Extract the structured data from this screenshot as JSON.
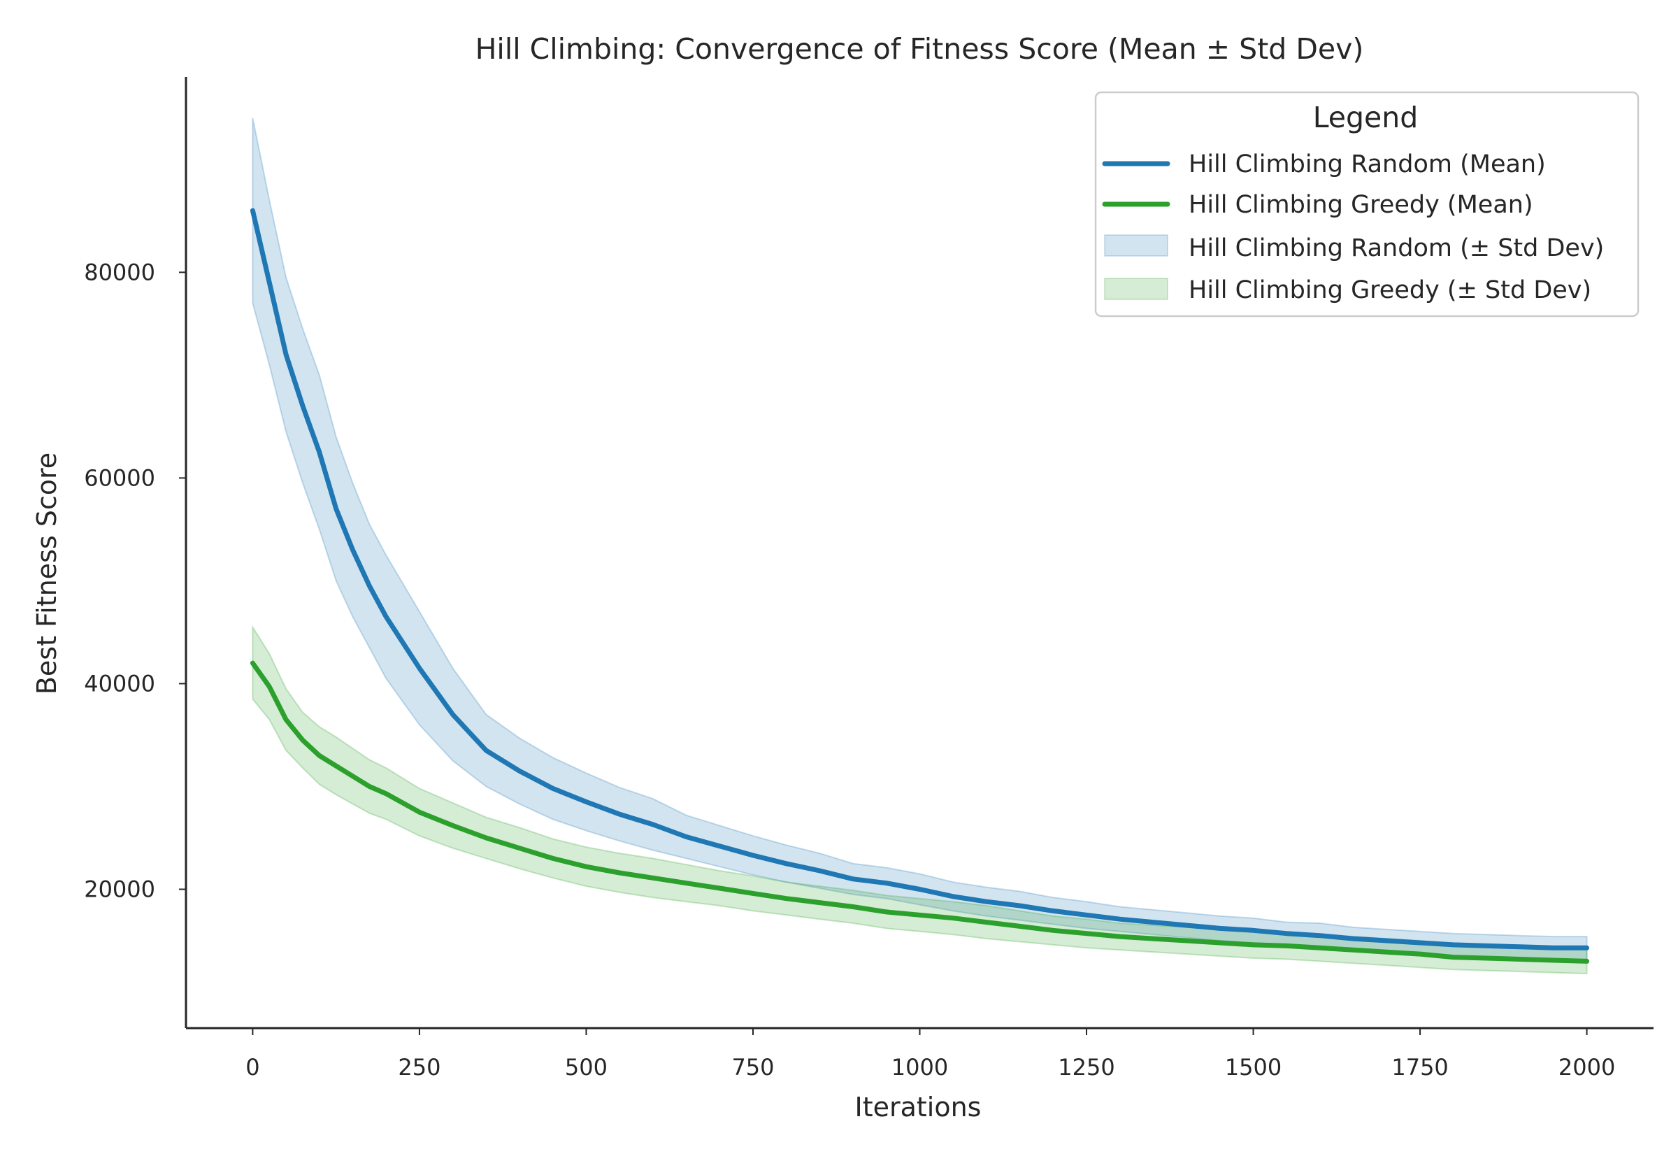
{
  "chart_data": {
    "type": "line",
    "title": "Hill Climbing: Convergence of Fitness Score (Mean ± Std Dev)",
    "xlabel": "Iterations",
    "ylabel": "Best Fitness Score",
    "xlim": [
      -100,
      2100
    ],
    "ylim": [
      6500,
      99000
    ],
    "xticks": [
      0,
      250,
      500,
      750,
      1000,
      1250,
      1500,
      1750,
      2000
    ],
    "xtick_labels": [
      "0",
      "250",
      "500",
      "750",
      "1000",
      "1250",
      "1500",
      "1750",
      "2000"
    ],
    "yticks": [
      20000,
      40000,
      60000,
      80000
    ],
    "ytick_labels": [
      "20000",
      "40000",
      "60000",
      "80000"
    ],
    "grid": false,
    "legend": {
      "title": "Legend",
      "placement": "top-right",
      "entries": [
        "Hill Climbing Random (Mean)",
        "Hill Climbing Greedy (Mean)",
        "Hill Climbing Random (± Std Dev)",
        "Hill Climbing Greedy (± Std Dev)"
      ]
    },
    "x": [
      0,
      25,
      50,
      75,
      100,
      125,
      150,
      175,
      200,
      250,
      300,
      350,
      400,
      450,
      500,
      550,
      600,
      650,
      700,
      750,
      800,
      850,
      900,
      950,
      1000,
      1050,
      1100,
      1150,
      1200,
      1250,
      1300,
      1350,
      1400,
      1450,
      1500,
      1550,
      1600,
      1650,
      1700,
      1750,
      1800,
      1850,
      1900,
      1950,
      2000
    ],
    "series": [
      {
        "name": "Hill Climbing Random (Mean)",
        "color": "#1f77b4",
        "band_color": "#1f77b4",
        "values": [
          86000,
          79000,
          72000,
          67000,
          62500,
          57000,
          53000,
          49500,
          46500,
          41500,
          37000,
          33500,
          31500,
          29800,
          28500,
          27300,
          26300,
          25100,
          24200,
          23300,
          22500,
          21800,
          21000,
          20600,
          20000,
          19300,
          18800,
          18400,
          17900,
          17500,
          17100,
          16800,
          16500,
          16200,
          16000,
          15700,
          15500,
          15200,
          15000,
          14800,
          14600,
          14500,
          14400,
          14300,
          14300
        ],
        "std_low": [
          77000,
          71000,
          64500,
          59500,
          55000,
          50000,
          46500,
          43500,
          40500,
          36000,
          32500,
          30000,
          28300,
          26800,
          25700,
          24700,
          23800,
          23000,
          22200,
          21400,
          20700,
          20100,
          19500,
          19100,
          18500,
          17900,
          17400,
          17000,
          16600,
          16200,
          15900,
          15600,
          15300,
          15000,
          14800,
          14600,
          14300,
          14100,
          13900,
          13700,
          13500,
          13400,
          13300,
          13200,
          13200
        ],
        "std_high": [
          95000,
          87000,
          79500,
          74500,
          70000,
          64000,
          59500,
          55500,
          52500,
          47000,
          41500,
          37000,
          34700,
          32800,
          31300,
          29900,
          28800,
          27200,
          26200,
          25200,
          24300,
          23500,
          22500,
          22100,
          21500,
          20700,
          20200,
          19800,
          19200,
          18800,
          18300,
          18000,
          17700,
          17400,
          17200,
          16800,
          16700,
          16300,
          16100,
          15900,
          15700,
          15600,
          15500,
          15400,
          15400
        ]
      },
      {
        "name": "Hill Climbing Greedy (Mean)",
        "color": "#2ca02c",
        "band_color": "#2ca02c",
        "values": [
          42000,
          39700,
          36500,
          34500,
          33000,
          32000,
          31000,
          30000,
          29300,
          27500,
          26200,
          25000,
          24000,
          23000,
          22200,
          21600,
          21100,
          20600,
          20100,
          19600,
          19100,
          18700,
          18300,
          17800,
          17500,
          17200,
          16800,
          16400,
          16000,
          15700,
          15400,
          15200,
          15000,
          14800,
          14600,
          14500,
          14300,
          14100,
          13900,
          13700,
          13400,
          13300,
          13200,
          13100,
          13000
        ],
        "std_low": [
          38500,
          36500,
          33500,
          31800,
          30200,
          29200,
          28300,
          27400,
          26800,
          25200,
          24000,
          23000,
          22000,
          21100,
          20300,
          19700,
          19200,
          18800,
          18400,
          17900,
          17500,
          17100,
          16700,
          16200,
          15900,
          15600,
          15200,
          14900,
          14600,
          14300,
          14100,
          13900,
          13700,
          13500,
          13300,
          13200,
          13000,
          12800,
          12600,
          12400,
          12200,
          12100,
          12000,
          11900,
          11800
        ],
        "std_high": [
          45500,
          42900,
          39500,
          37200,
          35800,
          34800,
          33700,
          32600,
          31800,
          29800,
          28400,
          27000,
          26000,
          24900,
          24100,
          23500,
          23000,
          22400,
          21800,
          21300,
          20700,
          20300,
          19900,
          19400,
          19100,
          18800,
          18400,
          17900,
          17400,
          17100,
          16700,
          16500,
          16300,
          16100,
          15900,
          15800,
          15600,
          15400,
          15200,
          15000,
          14600,
          14500,
          14400,
          14300,
          14200
        ]
      }
    ]
  }
}
